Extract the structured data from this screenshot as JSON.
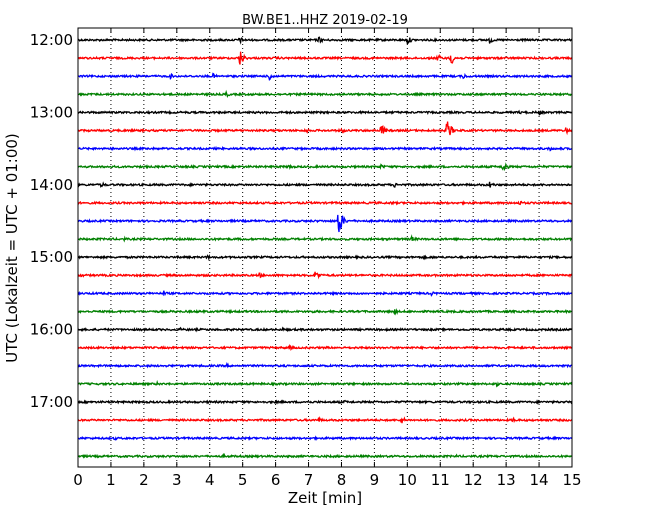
{
  "chart_data": {
    "type": "line",
    "title": "BW.BE1..HHZ 2019-02-19",
    "xlabel": "Zeit  [min]",
    "ylabel": "UTC (Lokalzeit = UTC + 01:00)",
    "xlim": [
      0,
      15
    ],
    "x_ticks": [
      "0",
      "1",
      "2",
      "3",
      "4",
      "5",
      "6",
      "7",
      "8",
      "9",
      "10",
      "11",
      "12",
      "13",
      "14",
      "15"
    ],
    "y_tick_labels": [
      "12:00",
      "13:00",
      "14:00",
      "15:00",
      "16:00",
      "17:00"
    ],
    "grid": true,
    "trace_colors": [
      "#000000",
      "#ff0000",
      "#0000ff",
      "#008000"
    ],
    "traces": [
      {
        "start": "12:00",
        "events": [
          [
            4.9,
            4
          ],
          [
            7.3,
            4
          ],
          [
            10.0,
            5
          ],
          [
            12.5,
            4
          ]
        ]
      },
      {
        "start": "12:15",
        "events": [
          [
            4.9,
            10
          ],
          [
            11.3,
            9
          ],
          [
            10.9,
            5
          ]
        ]
      },
      {
        "start": "12:30",
        "events": [
          [
            5.8,
            5
          ],
          [
            4.1,
            3
          ],
          [
            2.8,
            3
          ],
          [
            11.7,
            3
          ]
        ]
      },
      {
        "start": "12:45",
        "events": [
          [
            4.5,
            3
          ],
          [
            0.4,
            2
          ]
        ]
      },
      {
        "start": "13:00",
        "events": [
          [
            14.0,
            3
          ],
          [
            13.4,
            2
          ]
        ]
      },
      {
        "start": "13:15",
        "events": [
          [
            11.2,
            14
          ],
          [
            9.2,
            8
          ],
          [
            14.8,
            4
          ],
          [
            6.9,
            3
          ],
          [
            8.0,
            3
          ]
        ]
      },
      {
        "start": "13:30",
        "events": [
          [
            14.3,
            3
          ]
        ]
      },
      {
        "start": "13:45",
        "events": [
          [
            12.9,
            7
          ],
          [
            9.2,
            3
          ],
          [
            6.4,
            3
          ]
        ]
      },
      {
        "start": "14:00",
        "events": [
          [
            12.5,
            4
          ],
          [
            9.6,
            3
          ],
          [
            0.7,
            3
          ]
        ]
      },
      {
        "start": "14:15",
        "events": [
          [
            9.5,
            2
          ],
          [
            13.4,
            3
          ]
        ]
      },
      {
        "start": "14:30",
        "events": [
          [
            7.9,
            18
          ],
          [
            14.3,
            2
          ]
        ]
      },
      {
        "start": "14:45",
        "events": [
          [
            10.1,
            4
          ],
          [
            1.4,
            2
          ]
        ]
      },
      {
        "start": "15:00",
        "events": [
          [
            3.9,
            3
          ],
          [
            10.5,
            2
          ]
        ]
      },
      {
        "start": "15:15",
        "events": [
          [
            7.2,
            7
          ],
          [
            5.5,
            3
          ],
          [
            0.1,
            2
          ]
        ]
      },
      {
        "start": "15:30",
        "events": [
          [
            2.6,
            3
          ],
          [
            10.7,
            3
          ]
        ]
      },
      {
        "start": "15:45",
        "events": [
          [
            9.6,
            3
          ],
          [
            7.1,
            2
          ]
        ]
      },
      {
        "start": "16:00",
        "events": [
          [
            6.2,
            2
          ],
          [
            3.1,
            2
          ]
        ]
      },
      {
        "start": "16:15",
        "events": [
          [
            6.4,
            3
          ],
          [
            13.1,
            2
          ]
        ]
      },
      {
        "start": "16:30",
        "events": [
          [
            9.0,
            2
          ],
          [
            4.5,
            2
          ]
        ]
      },
      {
        "start": "16:45",
        "events": [
          [
            12.7,
            3
          ],
          [
            2.4,
            2
          ]
        ]
      },
      {
        "start": "17:00",
        "events": [
          [
            8.1,
            2
          ]
        ]
      },
      {
        "start": "17:15",
        "events": [
          [
            7.3,
            3
          ],
          [
            9.8,
            5
          ],
          [
            13.2,
            3
          ]
        ]
      },
      {
        "start": "17:30",
        "events": [
          [
            1.1,
            2
          ]
        ]
      },
      {
        "start": "17:45",
        "events": [
          [
            4.4,
            2
          ],
          [
            11.5,
            2
          ]
        ]
      }
    ]
  }
}
